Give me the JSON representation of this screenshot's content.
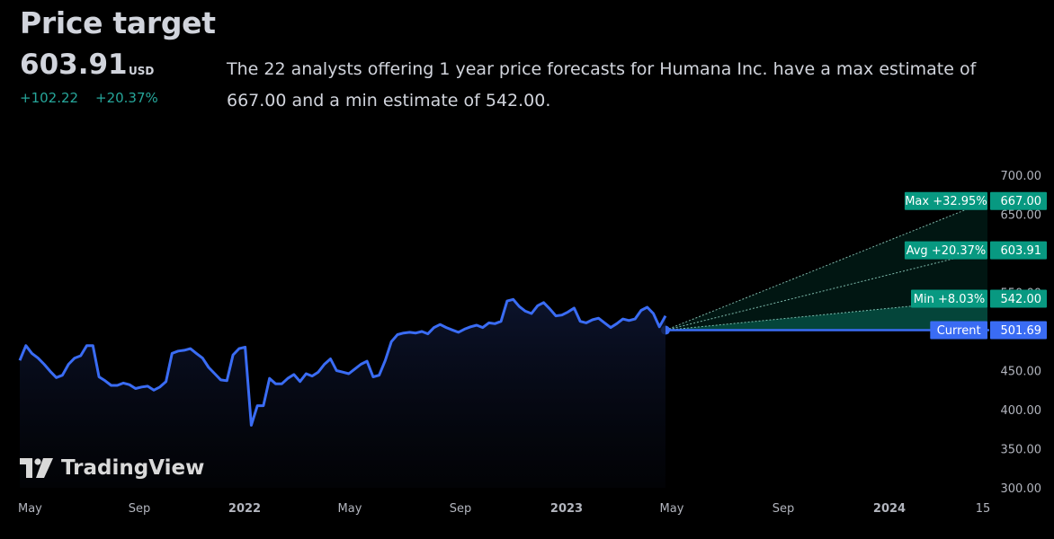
{
  "header": {
    "title": "Price target",
    "price": "603.91",
    "currency": "USD",
    "change_abs": "+102.22",
    "change_pct": "+20.37%",
    "description": "The 22 analysts offering 1 year price forecasts for Humana Inc. have a max estimate of 667.00 and a min estimate of 542.00."
  },
  "watermark": "TradingView",
  "colors": {
    "line": "#3a6cf4",
    "forecast": "#089981",
    "text": "#d1d4dc",
    "positive": "#26a69a",
    "background": "#000000"
  },
  "chart_data": {
    "type": "line",
    "y_axis": {
      "range": [
        300,
        700
      ],
      "ticks": [
        "700.00",
        "650.00",
        "550.00",
        "450.00",
        "400.00",
        "350.00",
        "300.00"
      ]
    },
    "x_axis": {
      "ticks": [
        "May",
        "Sep",
        "2022",
        "May",
        "Sep",
        "2023",
        "May",
        "Sep",
        "2024",
        "15"
      ]
    },
    "series": [
      {
        "values": [
          463,
          482,
          472,
          466,
          458,
          449,
          441,
          444,
          458,
          466,
          469,
          482,
          482,
          442,
          437,
          431,
          431,
          434,
          432,
          427,
          429,
          430,
          425,
          429,
          436,
          472,
          475,
          476,
          478,
          472,
          466,
          454,
          446,
          438,
          437,
          470,
          478,
          480,
          380,
          405,
          405,
          440,
          433,
          433,
          440,
          445,
          436,
          446,
          443,
          448,
          458,
          465,
          450,
          448,
          446,
          452,
          458,
          462,
          442,
          444,
          463,
          487,
          496,
          498,
          499,
          498,
          500,
          497,
          505,
          509,
          505,
          502,
          499,
          503,
          506,
          508,
          505,
          511,
          510,
          513,
          539,
          541,
          532,
          526,
          523,
          533,
          537,
          529,
          520,
          521,
          525,
          530,
          513,
          511,
          515,
          517,
          511,
          505,
          510,
          516,
          514,
          516,
          527,
          531,
          523,
          506,
          520
        ]
      }
    ],
    "current": {
      "label": "Current",
      "value": 501.69,
      "value_text": "501.69"
    },
    "forecasts": [
      {
        "name": "Max",
        "change": "+32.95%",
        "value": 667.0,
        "value_text": "667.00"
      },
      {
        "name": "Avg",
        "change": "+20.37%",
        "value": 603.91,
        "value_text": "603.91"
      },
      {
        "name": "Min",
        "change": "+8.03%",
        "value": 542.0,
        "value_text": "542.00"
      }
    ]
  }
}
